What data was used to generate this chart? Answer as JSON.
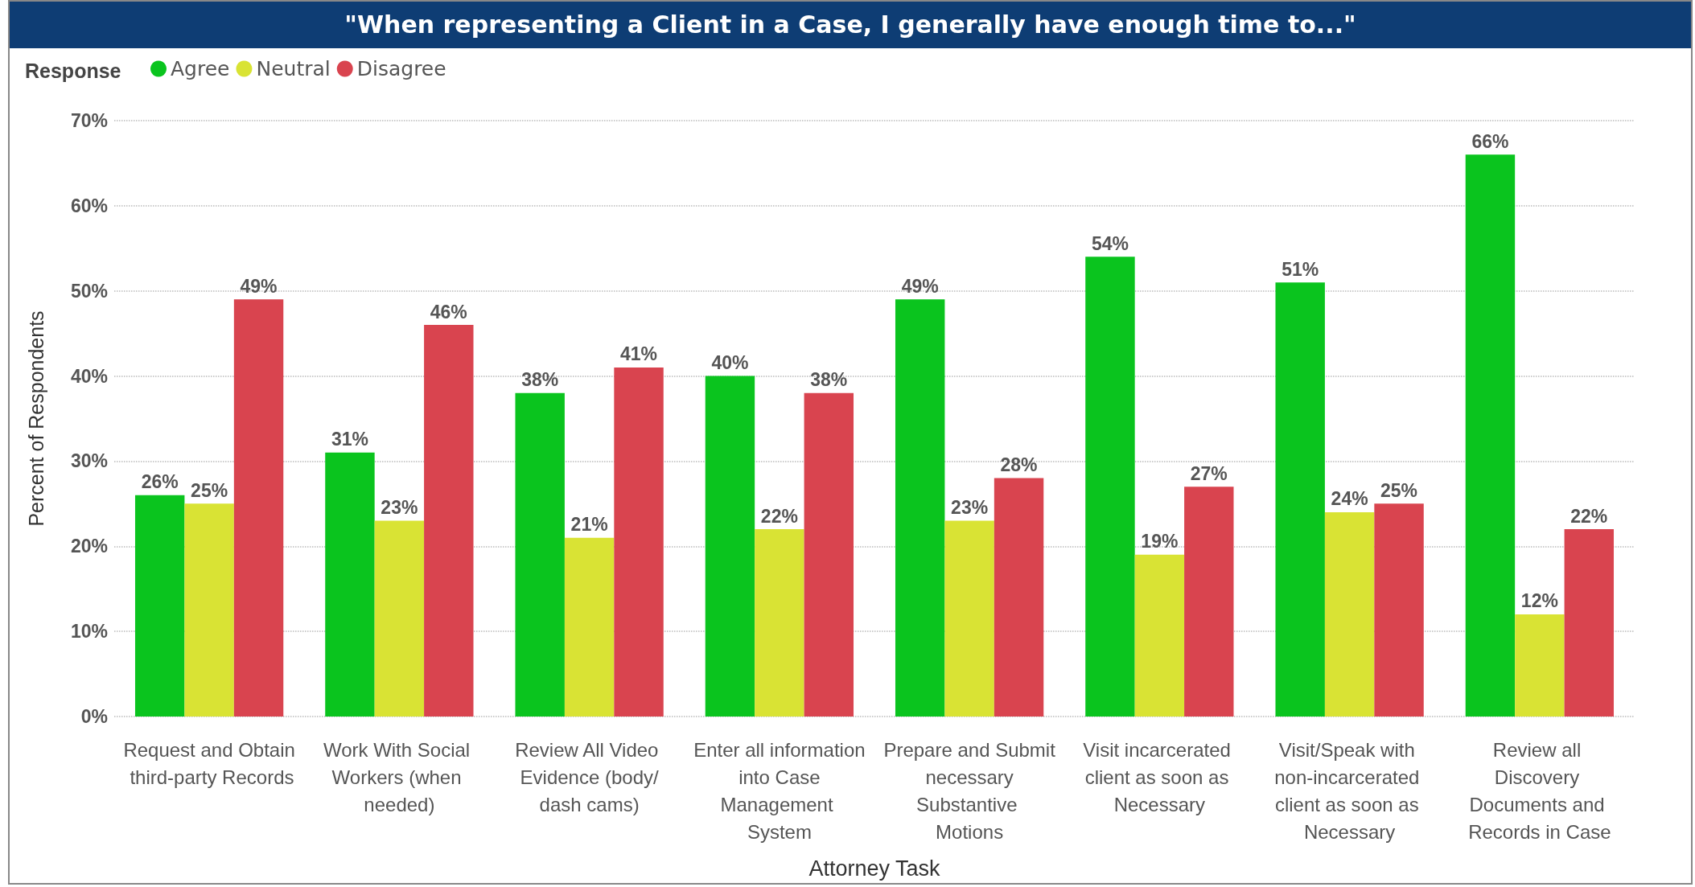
{
  "chart_data": {
    "type": "bar",
    "title": "\"When representing a Client in a Case, I generally have enough time to...\"",
    "xlabel": "Attorney Task",
    "ylabel": "Percent of Respondents",
    "legend_title": "Response",
    "categories": [
      "Request and Obtain third-party Records",
      "Work With Social Workers (when needed)",
      "Review All Video Evidence (body/dash cams)",
      "Enter all information into Case Management System",
      "Prepare and Submit necessary Substantive Motions",
      "Visit incarcerated client as soon as Necessary",
      "Visit/Speak with non-incarcerated client as soon as Necessary",
      "Review all Discovery Documents and Records in Case"
    ],
    "series": [
      {
        "name": "Agree",
        "color": "#0ac41e",
        "values": [
          26,
          31,
          38,
          40,
          49,
          54,
          51,
          66
        ],
        "value_labels": [
          "26%",
          "31%",
          "38%",
          "40%",
          "49%",
          "54%",
          "51%",
          "66%"
        ]
      },
      {
        "name": "Neutral",
        "color": "#d9e334",
        "values": [
          25,
          23,
          21,
          22,
          23,
          19,
          24,
          12
        ],
        "value_labels": [
          "25%",
          "23%",
          "21%",
          "22%",
          "23%",
          "19%",
          "24%",
          "12%"
        ]
      },
      {
        "name": "Disagree",
        "color": "#d9444f",
        "values": [
          49,
          46,
          41,
          38,
          28,
          27,
          25,
          22
        ],
        "value_labels": [
          "49%",
          "46%",
          "41%",
          "38%",
          "28%",
          "27%",
          "25%",
          "22%"
        ]
      }
    ],
    "ylim": [
      0,
      70
    ],
    "yticks": [
      {
        "value": 0,
        "label": "0%"
      },
      {
        "value": 10,
        "label": "10%"
      },
      {
        "value": 20,
        "label": "20%"
      },
      {
        "value": 30,
        "label": "30%"
      },
      {
        "value": 40,
        "label": "40%"
      },
      {
        "value": 50,
        "label": "50%"
      },
      {
        "value": 60,
        "label": "60%"
      },
      {
        "value": 70,
        "label": "70%"
      }
    ],
    "grid": "y",
    "legend": "top left"
  }
}
